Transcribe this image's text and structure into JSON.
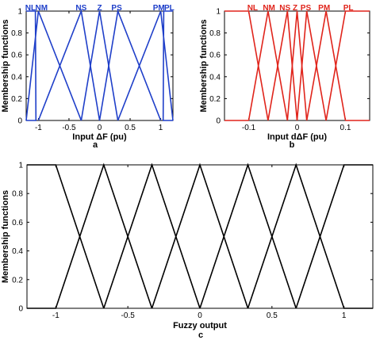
{
  "chart_data": [
    {
      "panel": "a",
      "type": "line",
      "xlabel": "Input ΔF (pu)",
      "ylabel": "Membership functions",
      "xlim": [
        -1.2,
        1.2
      ],
      "ylim": [
        0,
        1
      ],
      "xticks": [
        -1,
        -0.5,
        0,
        0.5,
        1
      ],
      "xtick_labels": [
        "-1",
        "-0.5",
        "0",
        "0.5",
        "1"
      ],
      "yticks": [
        0,
        0.2,
        0.4,
        0.6,
        0.8,
        1
      ],
      "ytick_labels": [
        "0",
        "0.2",
        "0.4",
        "0.6",
        "0.8",
        "1"
      ],
      "color": "#1f3fc9",
      "series": [
        {
          "name": "NL",
          "points": [
            [
              -1.2,
              1
            ],
            [
              -1.05,
              1
            ],
            [
              -1.04,
              0
            ],
            [
              -1.2,
              0
            ]
          ]
        },
        {
          "name": "NM",
          "points": [
            [
              -1.2,
              0
            ],
            [
              -1.0,
              1
            ],
            [
              -0.3,
              0
            ]
          ]
        },
        {
          "name": "NS",
          "points": [
            [
              -1.0,
              0
            ],
            [
              -0.3,
              1
            ],
            [
              0.0,
              0
            ]
          ]
        },
        {
          "name": "Z",
          "points": [
            [
              -0.3,
              0
            ],
            [
              0.0,
              1
            ],
            [
              0.3,
              0
            ]
          ]
        },
        {
          "name": "PS",
          "points": [
            [
              0.0,
              0
            ],
            [
              0.3,
              1
            ],
            [
              1.0,
              0
            ]
          ]
        },
        {
          "name": "PM",
          "points": [
            [
              0.3,
              0
            ],
            [
              1.0,
              1
            ],
            [
              1.2,
              0
            ]
          ]
        },
        {
          "name": "PL",
          "points": [
            [
              1.2,
              0
            ],
            [
              1.04,
              0
            ],
            [
              1.05,
              1
            ],
            [
              1.2,
              1
            ]
          ]
        }
      ],
      "mf_labels": [
        {
          "text": "NL",
          "x": -1.13
        },
        {
          "text": "NM",
          "x": -0.95
        },
        {
          "text": "NS",
          "x": -0.3
        },
        {
          "text": "Z",
          "x": 0.0
        },
        {
          "text": "PS",
          "x": 0.28
        },
        {
          "text": "PM",
          "x": 0.97
        },
        {
          "text": "PL",
          "x": 1.14
        }
      ]
    },
    {
      "panel": "b",
      "type": "line",
      "xlabel": "Input dΔF (pu)",
      "ylabel": "Membership functions",
      "xlim": [
        -0.15,
        0.15
      ],
      "ylim": [
        0,
        1
      ],
      "xticks": [
        -0.1,
        0,
        0.1
      ],
      "xtick_labels": [
        "-0.1",
        "0",
        "0.1"
      ],
      "yticks": [
        0,
        0.2,
        0.4,
        0.6,
        0.8,
        1
      ],
      "ytick_labels": [
        "0",
        "0.2",
        "0.4",
        "0.6",
        "0.8",
        "1"
      ],
      "color": "#e0241b",
      "series": [
        {
          "name": "NL",
          "points": [
            [
              -0.15,
              1
            ],
            [
              -0.1,
              1
            ],
            [
              -0.06,
              0
            ]
          ]
        },
        {
          "name": "NM",
          "points": [
            [
              -0.1,
              0
            ],
            [
              -0.06,
              1
            ],
            [
              -0.02,
              0
            ]
          ]
        },
        {
          "name": "NS",
          "points": [
            [
              -0.06,
              0
            ],
            [
              -0.02,
              1
            ],
            [
              0.0,
              0
            ]
          ]
        },
        {
          "name": "Z",
          "points": [
            [
              -0.02,
              0
            ],
            [
              0.0,
              1
            ],
            [
              0.02,
              0
            ]
          ]
        },
        {
          "name": "PS",
          "points": [
            [
              0.0,
              0
            ],
            [
              0.02,
              1
            ],
            [
              0.06,
              0
            ]
          ]
        },
        {
          "name": "PM",
          "points": [
            [
              0.02,
              0
            ],
            [
              0.06,
              1
            ],
            [
              0.1,
              0
            ]
          ]
        },
        {
          "name": "PL",
          "points": [
            [
              0.06,
              0
            ],
            [
              0.1,
              1
            ],
            [
              0.15,
              1
            ]
          ]
        },
        {
          "name": "",
          "points": [
            [
              -0.15,
              0
            ],
            [
              -0.1,
              0
            ]
          ]
        },
        {
          "name": "",
          "points": [
            [
              0.1,
              0
            ],
            [
              0.15,
              0
            ]
          ]
        }
      ],
      "mf_labels": [
        {
          "text": "NL",
          "x": -0.092
        },
        {
          "text": "NM",
          "x": -0.058
        },
        {
          "text": "NS",
          "x": -0.025
        },
        {
          "text": "Z",
          "x": -0.004
        },
        {
          "text": "PS",
          "x": 0.018
        },
        {
          "text": "PM",
          "x": 0.056
        },
        {
          "text": "PL",
          "x": 0.106
        }
      ]
    },
    {
      "panel": "c",
      "type": "line",
      "xlabel": "Fuzzy output",
      "ylabel": "Membership functions",
      "xlim": [
        -1.2,
        1.2
      ],
      "ylim": [
        0,
        1
      ],
      "xticks": [
        -1,
        -0.5,
        0,
        0.5,
        1
      ],
      "xtick_labels": [
        "-1",
        "-0.5",
        "0",
        "0.5",
        "1"
      ],
      "yticks": [
        0,
        0.2,
        0.4,
        0.6,
        0.8,
        1
      ],
      "ytick_labels": [
        "0",
        "0.2",
        "0.4",
        "0.6",
        "0.8",
        "1"
      ],
      "color": "#000000",
      "series": [
        {
          "name": "",
          "points": [
            [
              -1.2,
              1
            ],
            [
              -1.0,
              1
            ],
            [
              -0.667,
              0
            ]
          ]
        },
        {
          "name": "",
          "points": [
            [
              -1.2,
              0
            ],
            [
              -1.0,
              0
            ],
            [
              -0.667,
              1
            ],
            [
              -0.333,
              0
            ]
          ]
        },
        {
          "name": "",
          "points": [
            [
              -0.667,
              0
            ],
            [
              -0.333,
              1
            ],
            [
              0.0,
              0
            ]
          ]
        },
        {
          "name": "",
          "points": [
            [
              -0.333,
              0
            ],
            [
              0.0,
              1
            ],
            [
              0.333,
              0
            ]
          ]
        },
        {
          "name": "",
          "points": [
            [
              0.0,
              0
            ],
            [
              0.333,
              1
            ],
            [
              0.667,
              0
            ]
          ]
        },
        {
          "name": "",
          "points": [
            [
              0.333,
              0
            ],
            [
              0.667,
              1
            ],
            [
              1.0,
              0
            ],
            [
              1.2,
              0
            ]
          ]
        },
        {
          "name": "",
          "points": [
            [
              0.667,
              0
            ],
            [
              1.0,
              1
            ],
            [
              1.2,
              1
            ]
          ]
        }
      ],
      "mf_labels": []
    }
  ],
  "panel_letters": [
    "a",
    "b",
    "c"
  ]
}
